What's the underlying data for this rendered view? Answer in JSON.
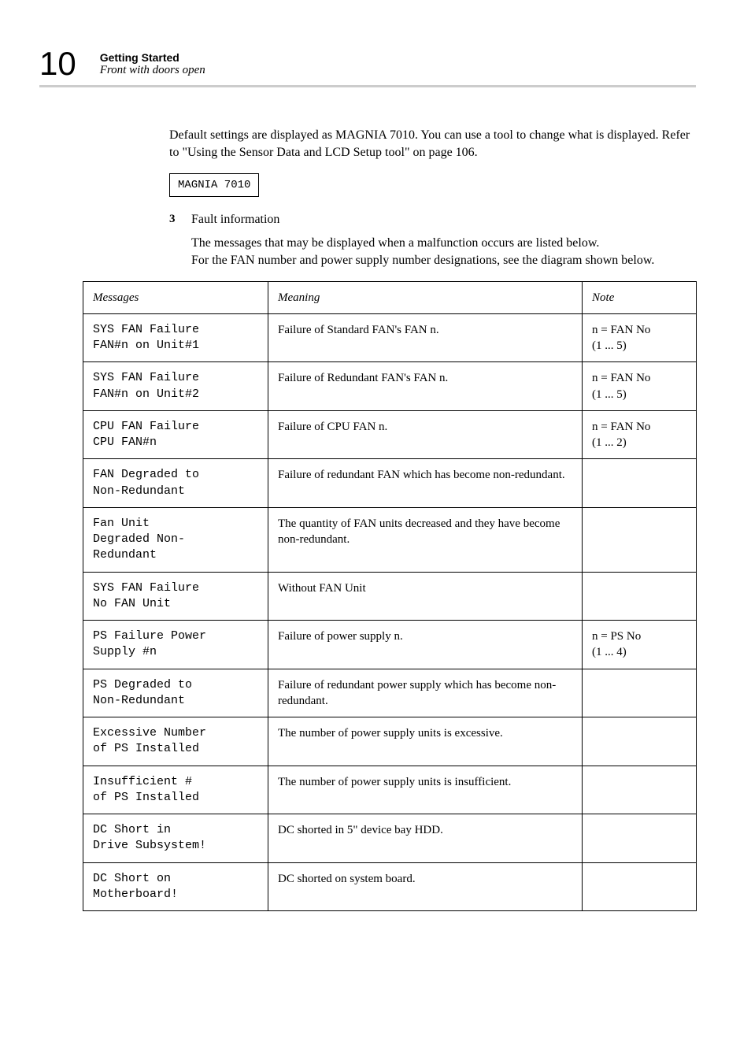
{
  "header": {
    "pageNumber": "10",
    "sectionTitle": "Getting Started",
    "subsectionTitle": "Front with doors open"
  },
  "intro": {
    "para1": "Default settings are displayed as MAGNIA 7010. You can use a tool to change what is displayed. Refer to \"Using the Sensor Data and LCD Setup tool\" on page 106.",
    "codeBox": "MAGNIA 7010"
  },
  "list": {
    "number": "3",
    "label": "Fault information",
    "para": "The messages that may be displayed when a malfunction occurs are listed below.\nFor the FAN number and power supply number designations, see the diagram shown below."
  },
  "table": {
    "headers": {
      "messages": "Messages",
      "meaning": "Meaning",
      "note": "Note"
    },
    "rows": [
      {
        "msg": "SYS FAN Failure\nFAN#n on Unit#1",
        "meaning": "Failure of Standard FAN's FAN n.",
        "note": "n = FAN No\n(1 ... 5)"
      },
      {
        "msg": "SYS FAN Failure\nFAN#n on Unit#2",
        "meaning": "Failure of Redundant FAN's FAN n.",
        "note": "n = FAN No\n(1 ... 5)"
      },
      {
        "msg": "CPU FAN Failure\nCPU FAN#n",
        "meaning": "Failure of CPU FAN n.",
        "note": "n = FAN No\n(1 ... 2)"
      },
      {
        "msg": "FAN Degraded to\nNon-Redundant",
        "meaning": "Failure of redundant FAN which has become non-redundant.",
        "note": ""
      },
      {
        "msg": "Fan Unit\nDegraded Non-\nRedundant",
        "meaning": "The quantity of FAN units decreased and they have become non-redundant.",
        "note": ""
      },
      {
        "msg": "SYS FAN Failure\nNo FAN Unit",
        "meaning": "Without FAN Unit",
        "note": ""
      },
      {
        "msg": "PS Failure Power\nSupply #n",
        "meaning": "Failure of power supply n.",
        "note": "n = PS No\n(1 ... 4)"
      },
      {
        "msg": "PS Degraded to\nNon-Redundant",
        "meaning": "Failure of redundant power supply which has become non-redundant.",
        "note": ""
      },
      {
        "msg": "Excessive Number\nof PS Installed",
        "meaning": "The number of power supply units is excessive.",
        "note": ""
      },
      {
        "msg": "Insufficient #\nof PS Installed",
        "meaning": "The number of power supply units is insufficient.",
        "note": ""
      },
      {
        "msg": "DC Short in\nDrive Subsystem!",
        "meaning": "DC shorted in 5\" device bay HDD.",
        "note": ""
      },
      {
        "msg": "DC Short on\nMotherboard!",
        "meaning": "DC shorted on system board.",
        "note": ""
      }
    ]
  }
}
